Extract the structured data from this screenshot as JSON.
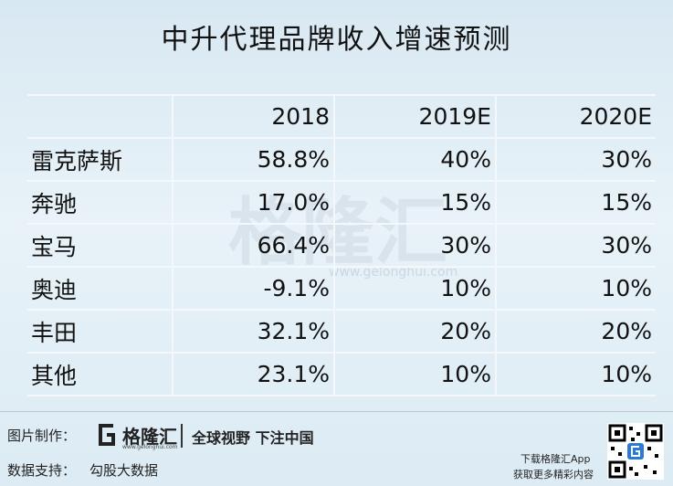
{
  "header": {
    "title": "中升代理品牌收入增速预测"
  },
  "table": {
    "columns": [
      "2018",
      "2019E",
      "2020E"
    ],
    "rows": [
      [
        "雷克萨斯",
        "58.8%",
        "40%",
        "30%"
      ],
      [
        "奔驰",
        "17.0%",
        "15%",
        "15%"
      ],
      [
        "宝马",
        "66.4%",
        "30%",
        "30%"
      ],
      [
        "奥迪",
        "-9.1%",
        "10%",
        "10%"
      ],
      [
        "丰田",
        "32.1%",
        "20%",
        "20%"
      ],
      [
        "其他",
        "23.1%",
        "10%",
        "10%"
      ]
    ]
  },
  "watermark": {
    "brand": "格隆汇",
    "url": "www.gelonghui.com"
  },
  "footer": {
    "made_by_label": "图片制作：",
    "logo_text": "格隆汇",
    "logo_url": "www.gelonghui.com",
    "slogan": "全球视野 下注中国",
    "data_source_label": "数据支持：",
    "data_source": "勾股大数据",
    "app_line1": "下载格隆汇App",
    "app_line2": "获取更多精彩内容"
  }
}
